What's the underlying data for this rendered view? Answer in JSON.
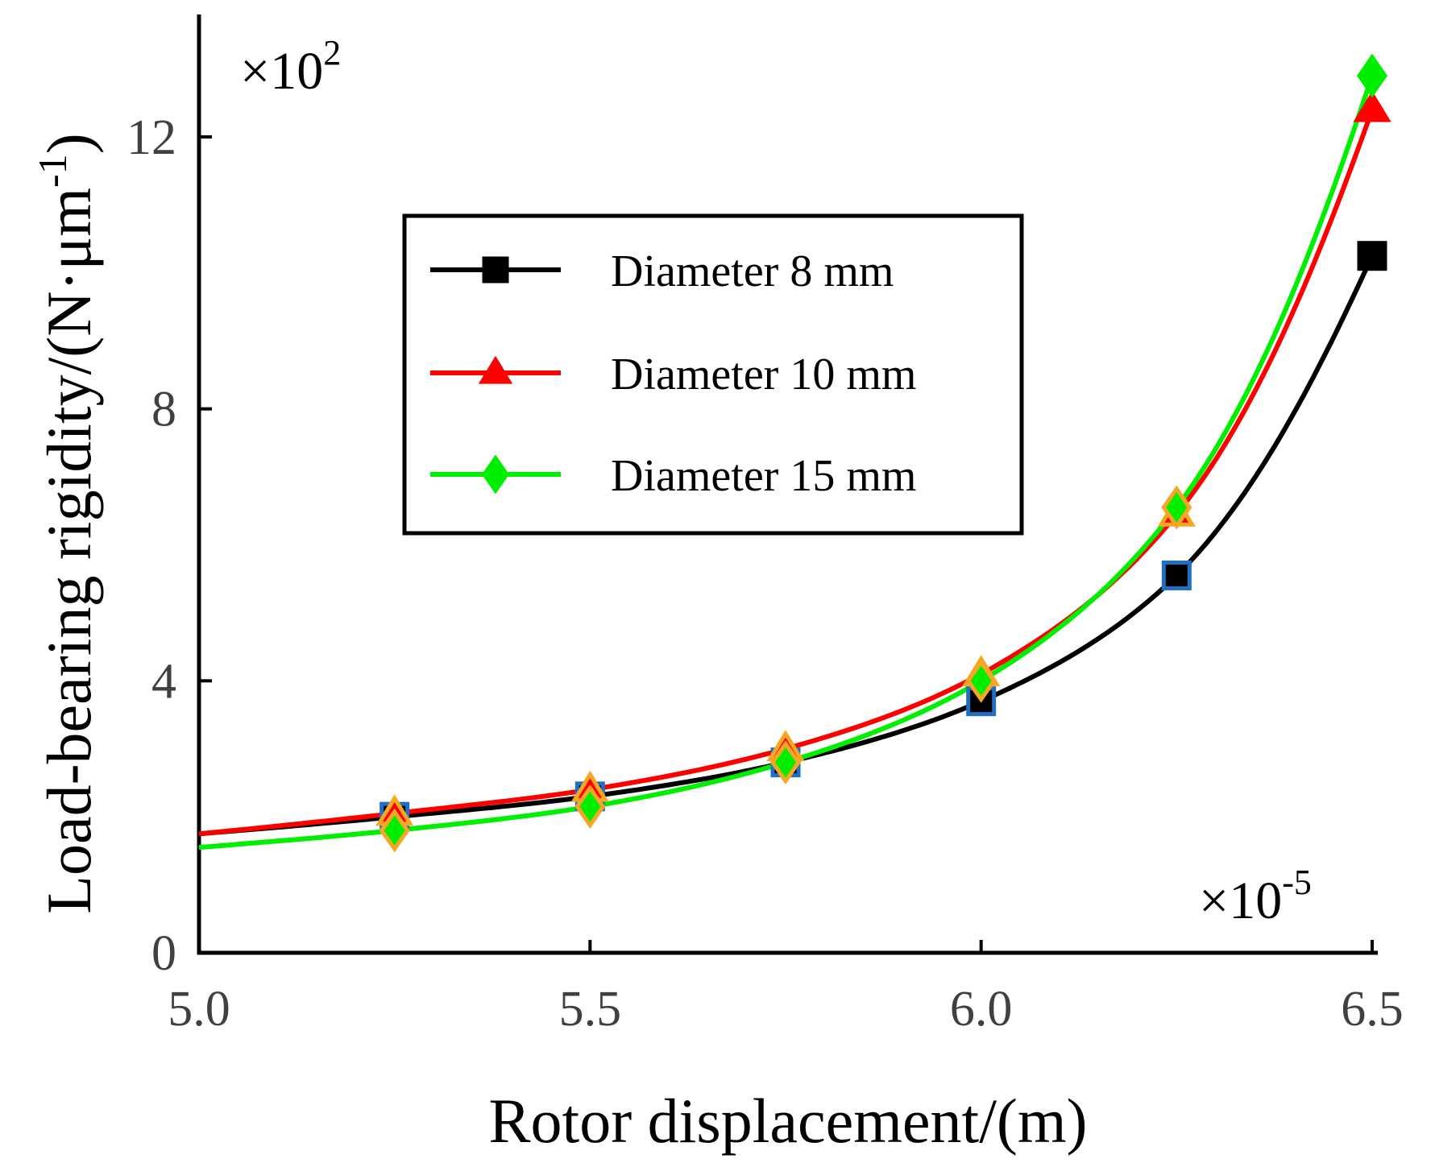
{
  "chart_data": {
    "type": "line",
    "title": "",
    "xlabel": "Rotor displacement/(m)",
    "ylabel": "Load-bearing rigidity/(N·μm",
    "ylabel_sup": "-1",
    "ylabel_close": ")",
    "x_multiplier": {
      "base": "×10",
      "exp": "-5"
    },
    "y_multiplier": {
      "base": "×10",
      "exp": "2"
    },
    "xlim": [
      5.0,
      6.5
    ],
    "ylim": [
      0,
      13.8
    ],
    "xticks": [
      5.0,
      5.5,
      6.0,
      6.5
    ],
    "xtick_labels": [
      "5.0",
      "5.5",
      "6.0",
      "6.5"
    ],
    "yticks": [
      0,
      4,
      8,
      12
    ],
    "ytick_labels": [
      "0",
      "4",
      "8",
      "12"
    ],
    "grid": false,
    "legend_position": "upper-center",
    "series": [
      {
        "name": "Diameter 8 mm",
        "color": "#000000",
        "marker": "square",
        "marker_face": "#000000",
        "marker_edge": "#1f6fc4",
        "x": [
          5.0,
          5.25,
          5.5,
          5.75,
          6.0,
          6.25,
          6.5
        ],
        "values": [
          1.75,
          2.0,
          2.3,
          2.8,
          3.7,
          5.55,
          10.25
        ]
      },
      {
        "name": "Diameter 10 mm",
        "color": "#ff0000",
        "marker": "triangle",
        "marker_face": "#ff0000",
        "marker_edge": "#f5a623",
        "x": [
          5.0,
          5.25,
          5.5,
          5.75,
          6.0,
          6.25,
          6.5
        ],
        "values": [
          1.75,
          2.05,
          2.4,
          3.0,
          4.1,
          6.45,
          12.4
        ]
      },
      {
        "name": "Diameter 15 mm",
        "color": "#00ee00",
        "marker": "diamond",
        "marker_face": "#00ee00",
        "marker_edge": "#f5a623",
        "x": [
          5.0,
          5.25,
          5.5,
          5.75,
          6.0,
          6.25,
          6.5
        ],
        "values": [
          1.55,
          1.8,
          2.15,
          2.8,
          4.0,
          6.55,
          12.9
        ]
      }
    ]
  }
}
